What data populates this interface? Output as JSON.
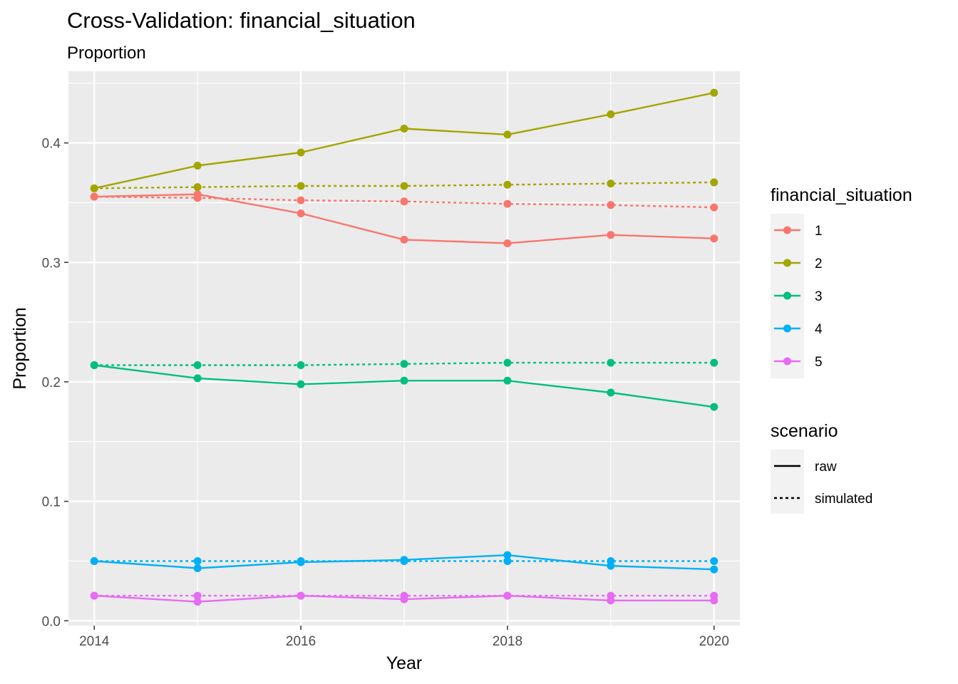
{
  "chart_data": {
    "type": "line",
    "title": "Cross-Validation: financial_situation",
    "subtitle": "Proportion",
    "xlabel": "Year",
    "ylabel": "Proportion",
    "x": [
      2014,
      2015,
      2016,
      2017,
      2018,
      2019,
      2020
    ],
    "xlim": [
      2013.75,
      2020.25
    ],
    "ylim": [
      -0.004,
      0.46
    ],
    "x_ticks": [
      "2014",
      "2016",
      "2018",
      "2020"
    ],
    "y_ticks": [
      "0.0",
      "0.1",
      "0.2",
      "0.3",
      "0.4"
    ],
    "grid": true,
    "legend_position": "right",
    "legends": [
      {
        "title": "financial_situation",
        "entries": [
          {
            "label": "1",
            "color": "#F8766D"
          },
          {
            "label": "2",
            "color": "#A3A500"
          },
          {
            "label": "3",
            "color": "#00BF7D"
          },
          {
            "label": "4",
            "color": "#00B0F6"
          },
          {
            "label": "5",
            "color": "#E76BF3"
          }
        ]
      },
      {
        "title": "scenario",
        "entries": [
          {
            "label": "raw",
            "linetype": "solid"
          },
          {
            "label": "simulated",
            "linetype": "dotted"
          }
        ]
      }
    ],
    "series": [
      {
        "group": "1",
        "scenario": "raw",
        "color": "#F8766D",
        "values": [
          0.355,
          0.357,
          0.341,
          0.319,
          0.316,
          0.323,
          0.32
        ]
      },
      {
        "group": "1",
        "scenario": "simulated",
        "color": "#F8766D",
        "values": [
          0.355,
          0.354,
          0.352,
          0.351,
          0.349,
          0.348,
          0.346
        ]
      },
      {
        "group": "2",
        "scenario": "raw",
        "color": "#A3A500",
        "values": [
          0.362,
          0.381,
          0.392,
          0.412,
          0.407,
          0.424,
          0.442
        ]
      },
      {
        "group": "2",
        "scenario": "simulated",
        "color": "#A3A500",
        "values": [
          0.362,
          0.363,
          0.364,
          0.364,
          0.365,
          0.366,
          0.367
        ]
      },
      {
        "group": "3",
        "scenario": "raw",
        "color": "#00BF7D",
        "values": [
          0.214,
          0.203,
          0.198,
          0.201,
          0.201,
          0.191,
          0.179
        ]
      },
      {
        "group": "3",
        "scenario": "simulated",
        "color": "#00BF7D",
        "values": [
          0.214,
          0.214,
          0.214,
          0.215,
          0.216,
          0.216,
          0.216
        ]
      },
      {
        "group": "4",
        "scenario": "raw",
        "color": "#00B0F6",
        "values": [
          0.05,
          0.044,
          0.049,
          0.051,
          0.055,
          0.046,
          0.043
        ]
      },
      {
        "group": "4",
        "scenario": "simulated",
        "color": "#00B0F6",
        "values": [
          0.05,
          0.05,
          0.05,
          0.05,
          0.05,
          0.05,
          0.05
        ]
      },
      {
        "group": "5",
        "scenario": "raw",
        "color": "#E76BF3",
        "values": [
          0.021,
          0.016,
          0.021,
          0.018,
          0.021,
          0.017,
          0.017
        ]
      },
      {
        "group": "5",
        "scenario": "simulated",
        "color": "#E76BF3",
        "values": [
          0.021,
          0.021,
          0.021,
          0.021,
          0.021,
          0.021,
          0.021
        ]
      }
    ]
  }
}
